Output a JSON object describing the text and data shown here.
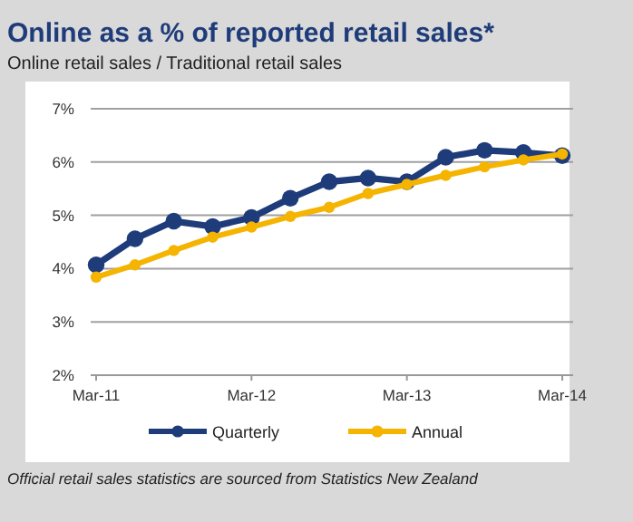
{
  "chart_data": {
    "type": "line",
    "title": "Online as a % of reported retail sales*",
    "subtitle": "Online retail sales / Traditional retail sales",
    "categories": [
      "Mar-11",
      null,
      null,
      null,
      "Mar-12",
      null,
      null,
      null,
      "Mar-13",
      null,
      null,
      null,
      "Mar-14"
    ],
    "series": [
      {
        "name": "Quarterly",
        "color": "#1f3c7a",
        "values": [
          4.07,
          4.56,
          4.89,
          4.79,
          4.96,
          5.32,
          5.63,
          5.7,
          5.63,
          6.09,
          6.22,
          6.18,
          6.12
        ]
      },
      {
        "name": "Annual",
        "color": "#f5b400",
        "values": [
          3.84,
          4.07,
          4.34,
          4.59,
          4.78,
          4.98,
          5.15,
          5.41,
          5.58,
          5.75,
          5.91,
          6.04,
          6.15
        ]
      }
    ],
    "ylim": [
      2,
      7
    ],
    "yticks": [
      {
        "value": 2,
        "label": "2%"
      },
      {
        "value": 3,
        "label": "3%"
      },
      {
        "value": 4,
        "label": "4%"
      },
      {
        "value": 5,
        "label": "5%"
      },
      {
        "value": 6,
        "label": "6%"
      },
      {
        "value": 7,
        "label": "7%"
      }
    ],
    "grid": "y",
    "legend": "bottom",
    "marker": "circle",
    "line_style": "solid",
    "annotations": [
      "Official retail sales statistics are sourced from Statistics New Zealand"
    ]
  }
}
